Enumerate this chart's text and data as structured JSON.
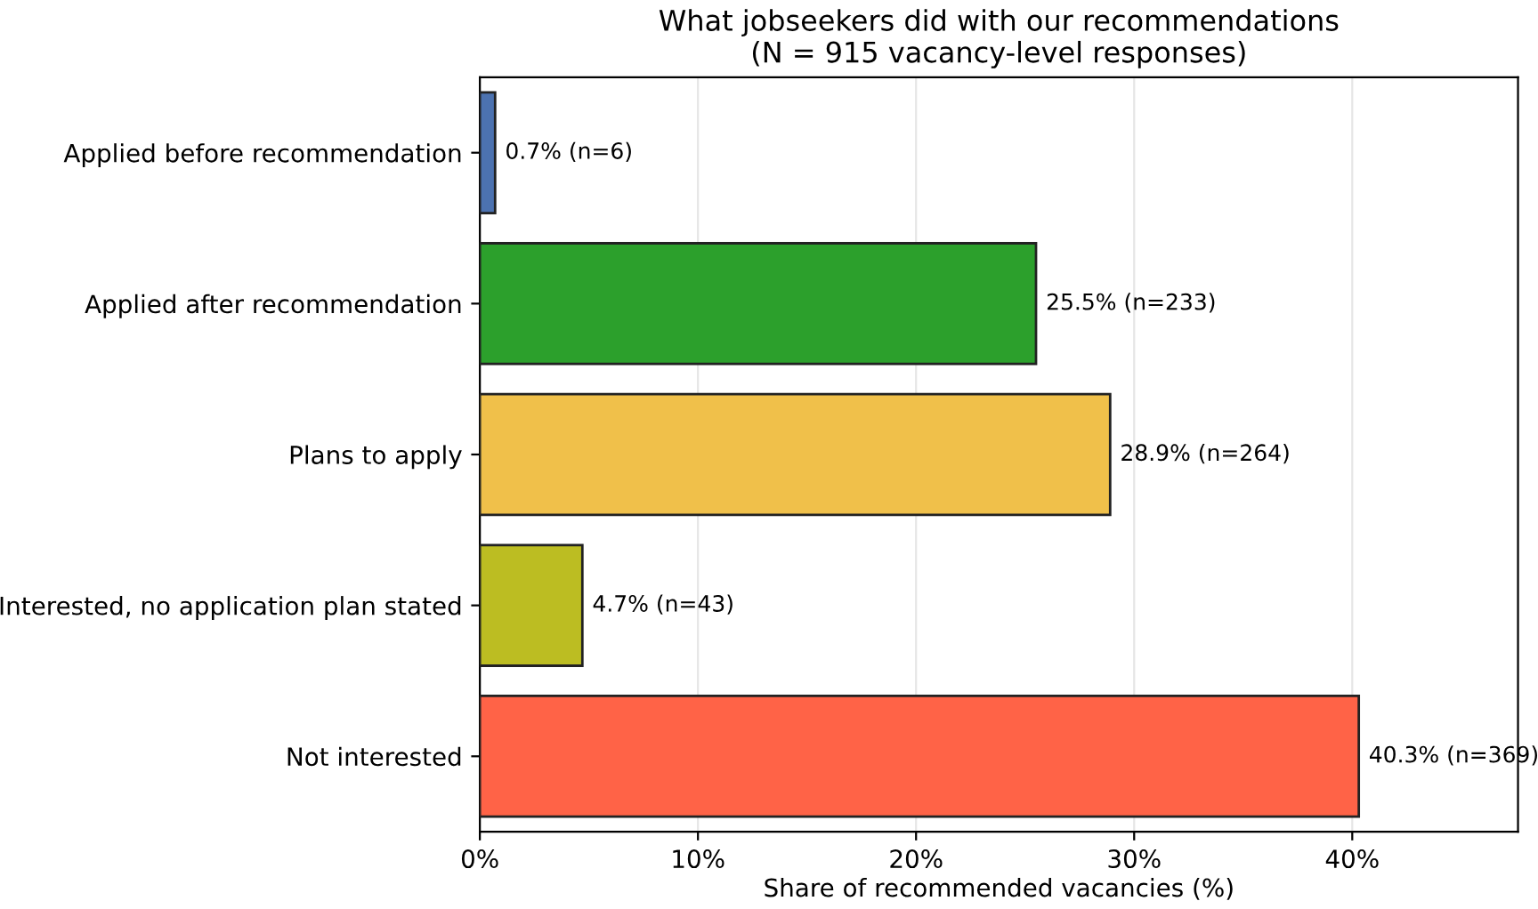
{
  "chart_data": {
    "type": "bar",
    "orientation": "horizontal",
    "title": "What jobseekers did with our recommendations\n(N = 915 vacancy-level responses)",
    "xlabel": "Share of recommended vacancies (%)",
    "categories": [
      "Applied before recommendation",
      "Applied after recommendation",
      "Plans to apply",
      "Interested, no application plan stated",
      "Not interested"
    ],
    "values": [
      0.7,
      25.5,
      28.9,
      4.7,
      40.3
    ],
    "colors": [
      "#4c72b0",
      "#2ca02c",
      "#f0c04a",
      "#bcbd22",
      "#ff6347"
    ],
    "value_labels": [
      "0.7% (n=6)",
      "25.5% (n=233)",
      "28.9% (n=264)",
      "4.7% (n=43)",
      "40.3% (n=369)"
    ],
    "xlim": [
      0,
      47.6
    ],
    "xticks": [
      {
        "value": 0,
        "label": "0%"
      },
      {
        "value": 10,
        "label": "10%"
      },
      {
        "value": 20,
        "label": "20%"
      },
      {
        "value": 30,
        "label": "30%"
      },
      {
        "value": 40,
        "label": "40%"
      }
    ],
    "grid": "x",
    "legend": false
  }
}
